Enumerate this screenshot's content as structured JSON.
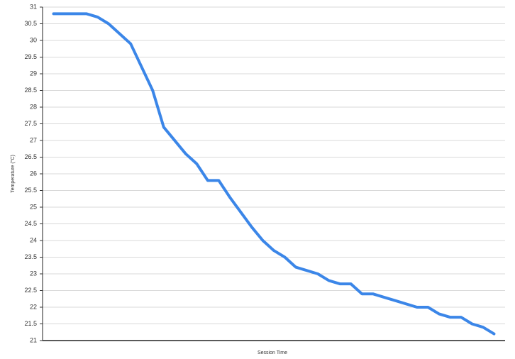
{
  "chart_data": {
    "type": "line",
    "y_label": "Temperature (°C)",
    "x_label": "Session Time",
    "x": [
      0,
      3,
      4,
      5,
      7,
      9,
      10,
      12,
      13,
      14,
      15,
      16,
      18,
      19,
      20,
      21,
      22,
      24,
      25,
      26,
      27,
      28,
      29,
      30,
      31,
      33,
      34,
      35,
      36,
      37,
      38,
      39,
      40
    ],
    "series": [
      {
        "color": "#3b86e8",
        "values": [
          30.8,
          30.8,
          30.7,
          30.5,
          29.9,
          28.5,
          27.4,
          26.6,
          26.3,
          25.8,
          25.8,
          25.3,
          24.4,
          24.0,
          23.7,
          23.5,
          23.2,
          23.0,
          22.8,
          22.7,
          22.7,
          22.4,
          22.4,
          22.3,
          22.2,
          22.0,
          22.0,
          21.8,
          21.7,
          21.7,
          21.5,
          21.4,
          21.2
        ]
      }
    ],
    "xlim": [
      -1,
      41
    ],
    "ylim": [
      21,
      31
    ],
    "yticks": [
      21,
      21.5,
      22,
      22.5,
      23,
      23.5,
      24,
      24.5,
      25,
      25.5,
      26,
      26.5,
      27,
      27.5,
      28,
      28.5,
      29,
      29.5,
      30,
      30.5,
      31
    ],
    "grid": true
  }
}
